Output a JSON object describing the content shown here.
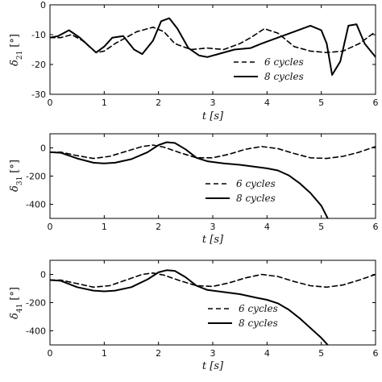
{
  "chart_data": [
    {
      "type": "line",
      "panel": "top",
      "ylabel": "δ21 [°]",
      "ylabel_main": "δ",
      "ylabel_sub": "21",
      "ylabel_unit": "[°]",
      "xlabel": "t [s]",
      "xlim": [
        0,
        6
      ],
      "ylim": [
        -30,
        0
      ],
      "xticks": [
        0,
        1,
        2,
        3,
        4,
        5,
        6
      ],
      "yticks": [
        0,
        -10,
        -20,
        -30
      ],
      "legend_position": "right",
      "series": [
        {
          "name": "6 cycles",
          "dash": "6,4",
          "x": [
            0,
            0.2,
            0.4,
            0.6,
            0.85,
            1.0,
            1.2,
            1.4,
            1.6,
            1.9,
            2.1,
            2.3,
            2.6,
            2.9,
            3.2,
            3.5,
            3.7,
            3.95,
            4.2,
            4.5,
            4.8,
            5.1,
            5.4,
            5.7,
            6.0
          ],
          "y": [
            -11,
            -11,
            -10,
            -12,
            -16,
            -15.5,
            -13,
            -11,
            -9,
            -7.5,
            -9,
            -13,
            -15,
            -14.5,
            -15,
            -13,
            -11,
            -8,
            -9.5,
            -14,
            -15.5,
            -16,
            -15.5,
            -13,
            -9
          ]
        },
        {
          "name": "8 cycles",
          "dash": "",
          "x": [
            0,
            0.15,
            0.35,
            0.55,
            0.85,
            1.0,
            1.15,
            1.35,
            1.55,
            1.7,
            1.9,
            2.05,
            2.2,
            2.35,
            2.55,
            2.75,
            2.9,
            3.1,
            3.4,
            3.7,
            3.9,
            4.2,
            4.5,
            4.8,
            5.0,
            5.1,
            5.2,
            5.35,
            5.5,
            5.65,
            5.8,
            6.0
          ],
          "y": [
            -11,
            -10.5,
            -8.5,
            -11,
            -16,
            -14,
            -11,
            -10.5,
            -15,
            -16.5,
            -12,
            -5.5,
            -4.5,
            -8,
            -14.5,
            -17,
            -17.5,
            -16.5,
            -15,
            -14.5,
            -13,
            -11,
            -9,
            -7,
            -8.5,
            -13,
            -23.5,
            -19,
            -7,
            -6.5,
            -13,
            -17.5
          ]
        }
      ]
    },
    {
      "type": "line",
      "panel": "middle",
      "ylabel": "δ31 [°]",
      "ylabel_main": "δ",
      "ylabel_sub": "31",
      "ylabel_unit": "[°]",
      "xlabel": "t [s]",
      "xlim": [
        0,
        6
      ],
      "ylim": [
        -500,
        100
      ],
      "xticks": [
        0,
        1,
        2,
        3,
        4,
        5,
        6
      ],
      "yticks": [
        0,
        -200,
        -400
      ],
      "legend_position": "right",
      "series": [
        {
          "name": "6 cycles",
          "dash": "6,4",
          "x": [
            0,
            0.2,
            0.5,
            0.8,
            1.1,
            1.4,
            1.7,
            1.9,
            2.1,
            2.4,
            2.7,
            3.0,
            3.3,
            3.6,
            3.9,
            4.2,
            4.5,
            4.8,
            5.1,
            5.4,
            5.7,
            6.0
          ],
          "y": [
            -30,
            -30,
            -55,
            -75,
            -60,
            -25,
            10,
            20,
            5,
            -35,
            -70,
            -70,
            -45,
            -10,
            10,
            -5,
            -40,
            -70,
            -75,
            -60,
            -30,
            10
          ]
        },
        {
          "name": "8 cycles",
          "dash": "",
          "x": [
            0,
            0.2,
            0.5,
            0.8,
            1.0,
            1.2,
            1.5,
            1.8,
            2.0,
            2.15,
            2.3,
            2.5,
            2.7,
            2.9,
            3.2,
            3.5,
            3.8,
            4.0,
            4.2,
            4.4,
            4.6,
            4.8,
            5.0,
            5.12
          ],
          "y": [
            -30,
            -35,
            -75,
            -105,
            -110,
            -105,
            -80,
            -30,
            20,
            40,
            35,
            -10,
            -70,
            -95,
            -110,
            -120,
            -135,
            -145,
            -160,
            -195,
            -250,
            -320,
            -410,
            -500
          ]
        }
      ]
    },
    {
      "type": "line",
      "panel": "bottom",
      "ylabel": "δ41 [°]",
      "ylabel_main": "δ",
      "ylabel_sub": "41",
      "ylabel_unit": "[°]",
      "xlabel": "t [s]",
      "xlim": [
        0,
        6
      ],
      "ylim": [
        -500,
        100
      ],
      "xticks": [
        0,
        1,
        2,
        3,
        4,
        5,
        6
      ],
      "yticks": [
        0,
        -200,
        -400
      ],
      "legend_position": "right",
      "series": [
        {
          "name": "6 cycles",
          "dash": "6,4",
          "x": [
            0,
            0.2,
            0.5,
            0.8,
            1.1,
            1.4,
            1.7,
            1.9,
            2.1,
            2.4,
            2.7,
            3.0,
            3.3,
            3.6,
            3.9,
            4.2,
            4.5,
            4.8,
            5.1,
            5.4,
            5.7,
            6.0
          ],
          "y": [
            -40,
            -40,
            -65,
            -90,
            -80,
            -40,
            0,
            10,
            -5,
            -45,
            -80,
            -85,
            -60,
            -25,
            0,
            -15,
            -50,
            -80,
            -90,
            -75,
            -40,
            0
          ]
        },
        {
          "name": "8 cycles",
          "dash": "",
          "x": [
            0,
            0.2,
            0.5,
            0.8,
            1.0,
            1.2,
            1.5,
            1.8,
            2.0,
            2.15,
            2.3,
            2.5,
            2.7,
            2.9,
            3.2,
            3.5,
            3.8,
            4.0,
            4.2,
            4.4,
            4.6,
            4.8,
            5.0,
            5.12
          ],
          "y": [
            -40,
            -45,
            -90,
            -115,
            -120,
            -115,
            -90,
            -35,
            15,
            30,
            25,
            -20,
            -80,
            -110,
            -125,
            -140,
            -165,
            -180,
            -205,
            -250,
            -310,
            -380,
            -450,
            -500
          ]
        }
      ]
    }
  ]
}
